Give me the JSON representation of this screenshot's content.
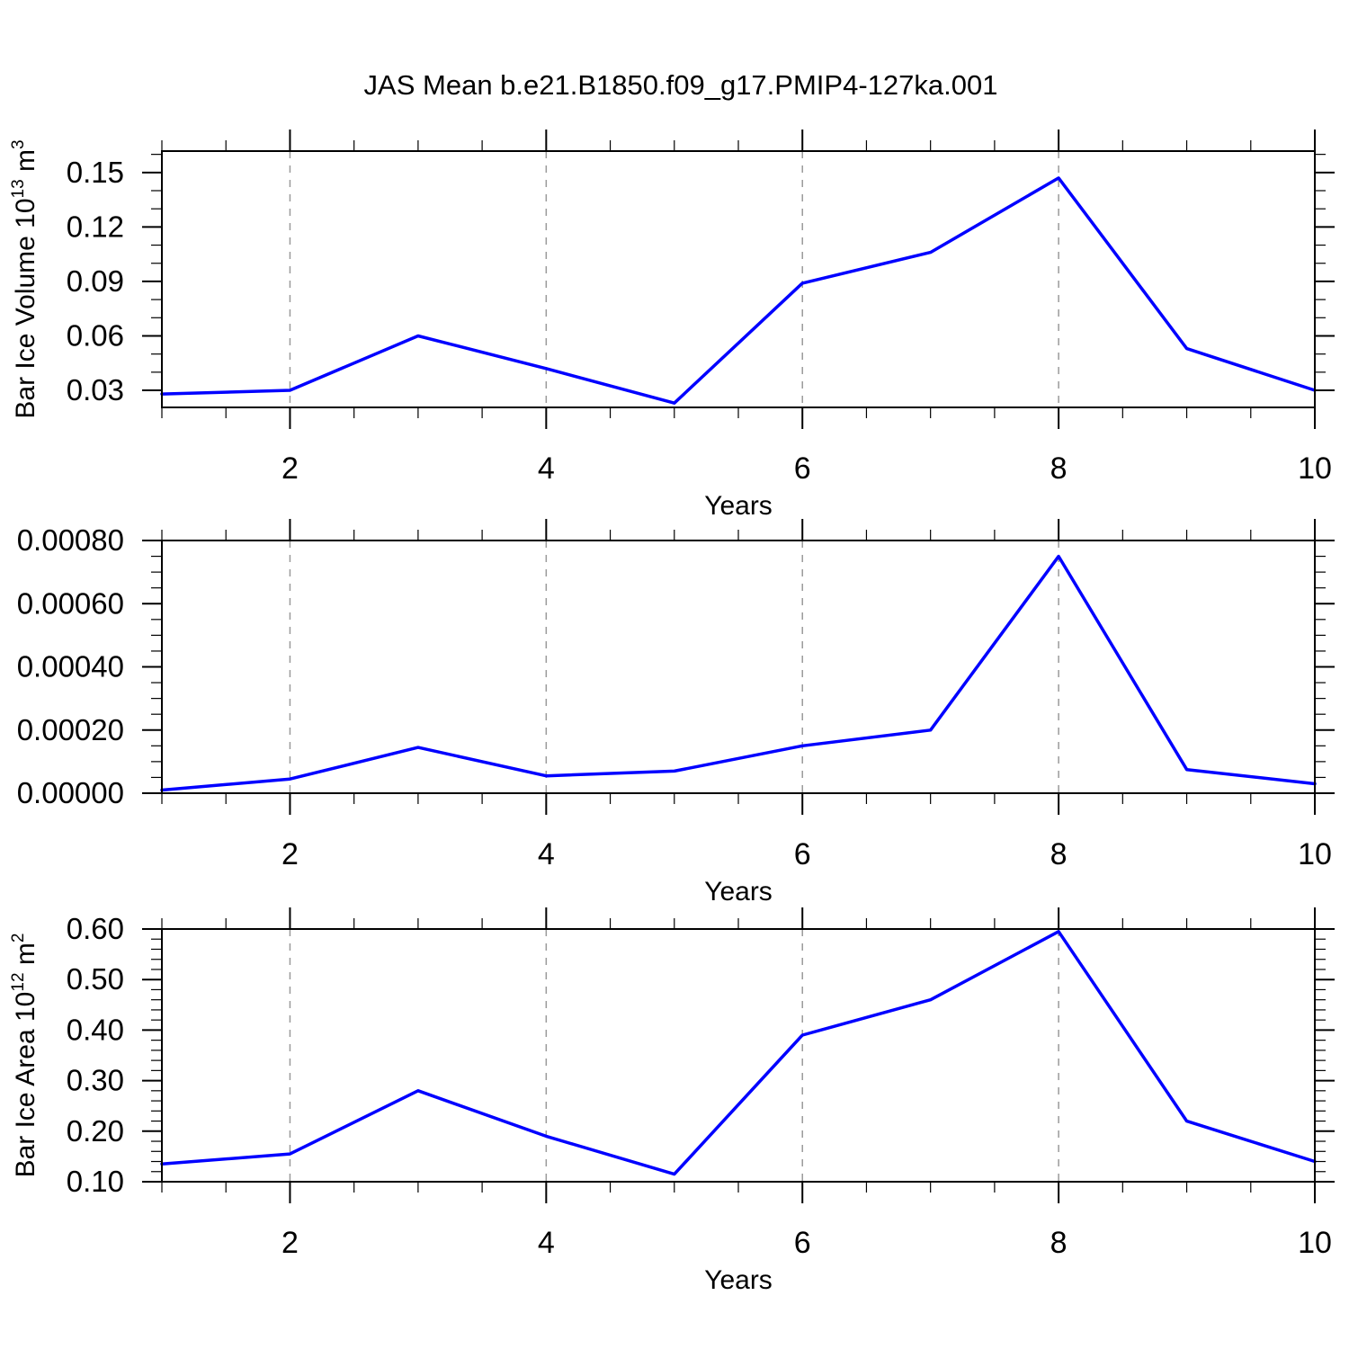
{
  "title": "JAS Mean b.e21.B1850.f09_g17.PMIP4-127ka.001",
  "colors": {
    "line": "#0000ff",
    "grid": "#9a9a9a",
    "axis": "#000000",
    "background": "#ffffff"
  },
  "chart_data": [
    {
      "type": "line",
      "panel": "bar-ice-volume",
      "ylabel_parts": [
        {
          "text": "Bar Ice Volume 10"
        },
        {
          "text": "13",
          "super": true
        },
        {
          "text": " m"
        },
        {
          "text": "3",
          "super": true
        }
      ],
      "xlabel": "Years",
      "x": [
        1,
        2,
        3,
        4,
        5,
        6,
        7,
        8,
        9,
        10
      ],
      "values": [
        0.028,
        0.03,
        0.06,
        0.042,
        0.023,
        0.089,
        0.106,
        0.147,
        0.053,
        0.03
      ],
      "xlim": [
        1,
        10
      ],
      "ylim": [
        0.0206,
        0.1618
      ],
      "yticks_major": [
        0.03,
        0.06,
        0.09,
        0.12,
        0.15
      ],
      "ytick_labels": [
        "0.03",
        "0.06",
        "0.09",
        "0.12",
        "0.15"
      ],
      "y_minor_step": 0.01,
      "xticks_major": [
        2,
        4,
        6,
        8,
        10
      ],
      "xtick_labels": [
        "2",
        "4",
        "6",
        "8",
        "10"
      ],
      "x_minor_step": 0.5,
      "grid_x": [
        2,
        4,
        6,
        8
      ],
      "grid_style": "dashed",
      "legend": "none"
    },
    {
      "type": "line",
      "panel": "middle-series",
      "ylabel_parts": [],
      "xlabel": "Years",
      "x": [
        1,
        2,
        3,
        4,
        5,
        6,
        7,
        8,
        9,
        10
      ],
      "values": [
        1e-05,
        4.5e-05,
        0.000145,
        5.5e-05,
        7e-05,
        0.00015,
        0.0002,
        0.00075,
        7.5e-05,
        3e-05
      ],
      "xlim": [
        1,
        10
      ],
      "ylim": [
        0.0,
        0.0008
      ],
      "yticks_major": [
        0.0,
        0.0002,
        0.0004,
        0.0006,
        0.0008
      ],
      "ytick_labels": [
        "0.00000",
        "0.00020",
        "0.00040",
        "0.00060",
        "0.00080"
      ],
      "y_minor_step": 5e-05,
      "xticks_major": [
        2,
        4,
        6,
        8,
        10
      ],
      "xtick_labels": [
        "2",
        "4",
        "6",
        "8",
        "10"
      ],
      "x_minor_step": 0.5,
      "grid_x": [
        2,
        4,
        6,
        8
      ],
      "grid_style": "dashed",
      "legend": "none"
    },
    {
      "type": "line",
      "panel": "bar-ice-area",
      "ylabel_parts": [
        {
          "text": "Bar Ice Area 10"
        },
        {
          "text": "12",
          "super": true
        },
        {
          "text": " m"
        },
        {
          "text": "2",
          "super": true
        }
      ],
      "xlabel": "Years",
      "x": [
        1,
        2,
        3,
        4,
        5,
        6,
        7,
        8,
        9,
        10
      ],
      "values": [
        0.135,
        0.155,
        0.28,
        0.19,
        0.115,
        0.39,
        0.46,
        0.595,
        0.22,
        0.14
      ],
      "xlim": [
        1,
        10
      ],
      "ylim": [
        0.1,
        0.6
      ],
      "yticks_major": [
        0.1,
        0.2,
        0.3,
        0.4,
        0.5,
        0.6
      ],
      "ytick_labels": [
        "0.10",
        "0.20",
        "0.30",
        "0.40",
        "0.50",
        "0.60"
      ],
      "y_minor_step": 0.02,
      "xticks_major": [
        2,
        4,
        6,
        8,
        10
      ],
      "xtick_labels": [
        "2",
        "4",
        "6",
        "8",
        "10"
      ],
      "x_minor_step": 0.5,
      "grid_x": [
        2,
        4,
        6,
        8
      ],
      "grid_style": "dashed",
      "legend": "none"
    }
  ]
}
